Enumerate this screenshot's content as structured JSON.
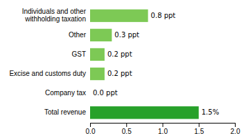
{
  "chart_data": {
    "type": "bar",
    "orientation": "horizontal",
    "categories": [
      "Total revenue",
      "Company tax",
      "Excise and customs duty",
      "GST",
      "Other",
      "Individuals and other\nwithholding taxation"
    ],
    "values": [
      1.5,
      0.0,
      0.2,
      0.2,
      0.3,
      0.8
    ],
    "value_labels": [
      "1.5%",
      "0.0 ppt",
      "0.2 ppt",
      "0.2 ppt",
      "0.3 ppt",
      "0.8 ppt"
    ],
    "colors": [
      "#27a12a",
      "#7dc955",
      "#7dc955",
      "#7dc955",
      "#7dc955",
      "#7dc955"
    ],
    "xlim": [
      0,
      2.0
    ],
    "xticks": [
      {
        "value": 0,
        "label": "0.0"
      },
      0.5,
      {
        "value": 1,
        "label": "1.0"
      },
      1.5,
      {
        "value": 2,
        "label": "2.0"
      }
    ],
    "data_labels": true,
    "grid": false
  }
}
